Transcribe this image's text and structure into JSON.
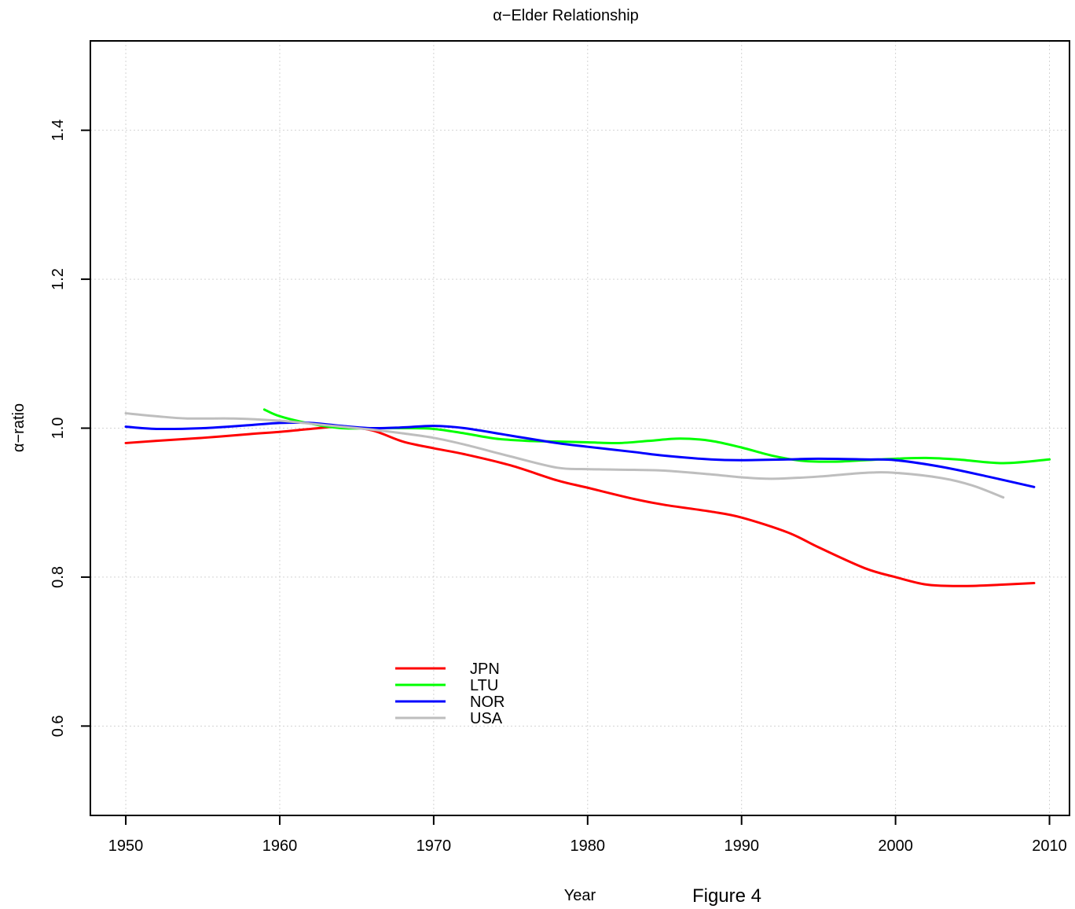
{
  "chart_data": {
    "type": "line",
    "title": "α−Elder Relationship",
    "xlabel": "Year",
    "ylabel": "α−ratio",
    "caption": "Figure 4",
    "xlim": [
      1947.7,
      2011.3
    ],
    "ylim": [
      0.48,
      1.52
    ],
    "x_ticks": [
      1950,
      1960,
      1970,
      1980,
      1990,
      2000,
      2010
    ],
    "y_ticks": [
      0.6,
      0.8,
      1.0,
      1.2,
      1.4
    ],
    "y_tick_labels": [
      "0.6",
      "0.8",
      "1.0",
      "1.2",
      "1.4"
    ],
    "grid": true,
    "legend_position": "bottom-left",
    "series": [
      {
        "name": "JPN",
        "color": "#ff0000",
        "x": [
          1950,
          1952,
          1955,
          1958,
          1960,
          1962,
          1964,
          1966,
          1968,
          1970,
          1972,
          1975,
          1978,
          1980,
          1983,
          1985,
          1988,
          1990,
          1993,
          1995,
          1998,
          2000,
          2002,
          2004,
          2006,
          2009
        ],
        "y": [
          0.98,
          0.983,
          0.987,
          0.992,
          0.995,
          0.999,
          1.002,
          0.997,
          0.982,
          0.973,
          0.965,
          0.95,
          0.93,
          0.92,
          0.905,
          0.897,
          0.888,
          0.88,
          0.86,
          0.84,
          0.812,
          0.8,
          0.79,
          0.788,
          0.789,
          0.792
        ]
      },
      {
        "name": "LTU",
        "color": "#00ff00",
        "x": [
          1959,
          1960,
          1962,
          1964,
          1966,
          1968,
          1970,
          1972,
          1974,
          1976,
          1978,
          1980,
          1982,
          1984,
          1986,
          1988,
          1990,
          1992,
          1994,
          1996,
          1998,
          2000,
          2002,
          2004,
          2007,
          2010
        ],
        "y": [
          1.025,
          1.016,
          1.006,
          1.0,
          1.0,
          1.0,
          0.999,
          0.993,
          0.986,
          0.983,
          0.982,
          0.981,
          0.98,
          0.983,
          0.986,
          0.983,
          0.974,
          0.963,
          0.956,
          0.955,
          0.957,
          0.959,
          0.96,
          0.958,
          0.953,
          0.958
        ]
      },
      {
        "name": "NOR",
        "color": "#0000ff",
        "x": [
          1950,
          1952,
          1955,
          1958,
          1960,
          1962,
          1964,
          1966,
          1968,
          1970,
          1972,
          1975,
          1978,
          1980,
          1983,
          1985,
          1988,
          1990,
          1993,
          1995,
          1998,
          2000,
          2003,
          2006,
          2009
        ],
        "y": [
          1.002,
          0.999,
          1.0,
          1.004,
          1.007,
          1.007,
          1.003,
          1.0,
          1.001,
          1.003,
          1.0,
          0.99,
          0.98,
          0.975,
          0.968,
          0.963,
          0.958,
          0.957,
          0.958,
          0.959,
          0.958,
          0.957,
          0.948,
          0.935,
          0.921
        ]
      },
      {
        "name": "USA",
        "color": "#bebebe",
        "x": [
          1950,
          1952,
          1954,
          1957,
          1960,
          1962,
          1964,
          1966,
          1968,
          1970,
          1972,
          1975,
          1978,
          1980,
          1983,
          1985,
          1988,
          1990,
          1992,
          1995,
          1998,
          2000,
          2003,
          2005,
          2007
        ],
        "y": [
          1.02,
          1.016,
          1.013,
          1.013,
          1.01,
          1.006,
          1.002,
          0.998,
          0.993,
          0.987,
          0.978,
          0.962,
          0.947,
          0.945,
          0.944,
          0.943,
          0.938,
          0.934,
          0.932,
          0.935,
          0.94,
          0.94,
          0.933,
          0.923,
          0.907
        ]
      }
    ]
  }
}
